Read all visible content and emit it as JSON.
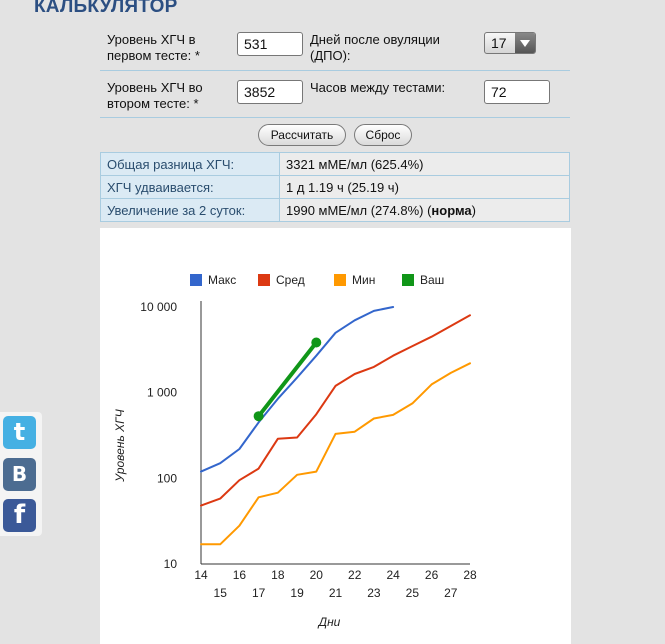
{
  "page": {
    "title": "КАЛЬКУЛЯТОР"
  },
  "form": {
    "row1": {
      "label_line1": "Уровень ХГЧ в",
      "label_line2": "первом тесте: *",
      "value": "531",
      "dpo_label_line1": "Дней после овуляции",
      "dpo_label_line2": "(ДПО):",
      "dpo_value": "17"
    },
    "row2": {
      "label_line1": "Уровень ХГЧ во",
      "label_line2": "втором тесте: *",
      "value": "3852",
      "hours_label": "Часов между тестами:",
      "hours_value": "72"
    }
  },
  "buttons": {
    "calculate": "Рассчитать",
    "reset": "Сброс"
  },
  "results": [
    {
      "label": "Общая разница ХГЧ:",
      "value": "3321 мМЕ/мл (625.4%)"
    },
    {
      "label": "ХГЧ удваивается:",
      "value": "1 д 1.19 ч (25.19 ч)"
    },
    {
      "label": "Увеличение за 2 суток:",
      "value_prefix": "1990 мМЕ/мл (274.8%) (",
      "value_bold": "норма",
      "value_suffix": ")"
    }
  ],
  "social": {
    "twitter": "t",
    "vk": "B",
    "facebook": "f"
  },
  "chart_data": {
    "type": "line",
    "ylabel": "Уровень ХГЧ",
    "xlabel": "Дни",
    "y_scale": "log",
    "ylim": [
      10,
      10000
    ],
    "xlim": [
      14,
      28
    ],
    "y_ticks": [
      "10",
      "100",
      "1 000",
      "10 000"
    ],
    "x_ticks_row1": [
      "14",
      "16",
      "18",
      "20",
      "22",
      "24",
      "26",
      "28"
    ],
    "x_ticks_row2": [
      "15",
      "17",
      "19",
      "21",
      "23",
      "25",
      "27"
    ],
    "legend_position": "top",
    "series": [
      {
        "name": "Макс",
        "color": "#3366cc",
        "x": [
          14,
          15,
          16,
          17,
          18,
          19,
          20,
          21,
          22,
          23,
          24
        ],
        "y": [
          120,
          150,
          220,
          450,
          850,
          1500,
          2700,
          5000,
          7000,
          9000,
          10000
        ]
      },
      {
        "name": "Сред",
        "color": "#dc3912",
        "x": [
          14,
          15,
          16,
          17,
          18,
          19,
          20,
          21,
          22,
          23,
          24,
          25,
          26,
          27,
          28
        ],
        "y": [
          48,
          58,
          95,
          130,
          290,
          300,
          560,
          1200,
          1650,
          2000,
          2700,
          3500,
          4500,
          6000,
          8000
        ]
      },
      {
        "name": "Мин",
        "color": "#ff9900",
        "x": [
          14,
          15,
          16,
          17,
          18,
          19,
          20,
          21,
          22,
          23,
          24,
          25,
          26,
          27,
          28
        ],
        "y": [
          17,
          17,
          28,
          60,
          68,
          110,
          120,
          330,
          350,
          500,
          550,
          750,
          1250,
          1700,
          2200
        ]
      },
      {
        "name": "Ваш",
        "color": "#109618",
        "x": [
          17,
          20
        ],
        "y": [
          531,
          3852
        ]
      }
    ]
  }
}
